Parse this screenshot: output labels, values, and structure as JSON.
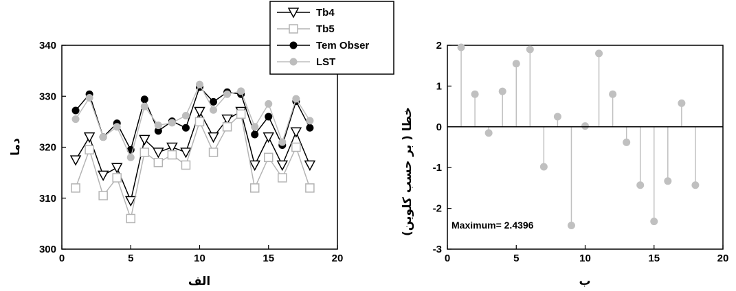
{
  "chart_data": [
    {
      "type": "line",
      "xlabel": "الف",
      "ylabel": "دما",
      "xlim": [
        0,
        20
      ],
      "ylim": [
        300,
        340
      ],
      "xticks": [
        "0",
        "5",
        "10",
        "15",
        "20"
      ],
      "yticks": [
        "300",
        "310",
        "320",
        "330",
        "340"
      ],
      "x": [
        1,
        2,
        3,
        4,
        5,
        6,
        7,
        8,
        9,
        10,
        11,
        12,
        13,
        14,
        15,
        16,
        17,
        18
      ],
      "series": [
        {
          "name": "Tb4",
          "color": "#000000",
          "marker": "triangle-down-open",
          "values": [
            317.5,
            322,
            314.5,
            316,
            309.5,
            321.5,
            319,
            320,
            319,
            327,
            322,
            325.5,
            327,
            316.5,
            322,
            316.5,
            323,
            316.5
          ]
        },
        {
          "name": "Tb5",
          "color": "#b4b4b4",
          "marker": "square-open",
          "values": [
            312,
            319.5,
            310.5,
            314,
            306,
            319,
            317,
            318.5,
            316.5,
            325,
            319,
            324,
            326.5,
            312,
            318,
            314,
            320,
            312
          ]
        },
        {
          "name": "Tem Obser",
          "color": "#000000",
          "marker": "circle-filled",
          "values": [
            327.2,
            330.4,
            322,
            324.7,
            319.5,
            329.4,
            323.2,
            325.1,
            323.8,
            331.8,
            328.9,
            330.8,
            330.4,
            322.5,
            326,
            320.4,
            329,
            323.8
          ]
        },
        {
          "name": "LST",
          "color": "#bdbdbd",
          "marker": "circle-filled",
          "values": [
            325.5,
            329.7,
            322,
            324,
            318,
            328,
            324.3,
            324.8,
            326.2,
            332.3,
            327.3,
            330.4,
            331,
            324,
            328.5,
            321,
            329.5,
            325.2
          ]
        }
      ],
      "legend_position": "top, straddling the two panels"
    },
    {
      "type": "stem",
      "xlabel": "ب",
      "ylabel": "خطا ( بر حسب کلوین)",
      "xlim": [
        0,
        20
      ],
      "ylim": [
        -3,
        2
      ],
      "xticks": [
        "0",
        "5",
        "10",
        "15",
        "20"
      ],
      "yticks": [
        "-3",
        "-2",
        "-1",
        "0",
        "1",
        "2"
      ],
      "annotation": "Maximum= 2.4396",
      "color": "#c0c0c0",
      "x": [
        1,
        2,
        3,
        4,
        5,
        6,
        7,
        8,
        9,
        10,
        11,
        12,
        13,
        14,
        15,
        16,
        17,
        18
      ],
      "values": [
        1.95,
        0.8,
        -0.15,
        0.87,
        1.55,
        1.9,
        -0.98,
        0.25,
        -2.42,
        0.02,
        1.8,
        0.8,
        -0.38,
        -1.43,
        -2.32,
        -1.33,
        0.58,
        -1.43
      ]
    }
  ]
}
